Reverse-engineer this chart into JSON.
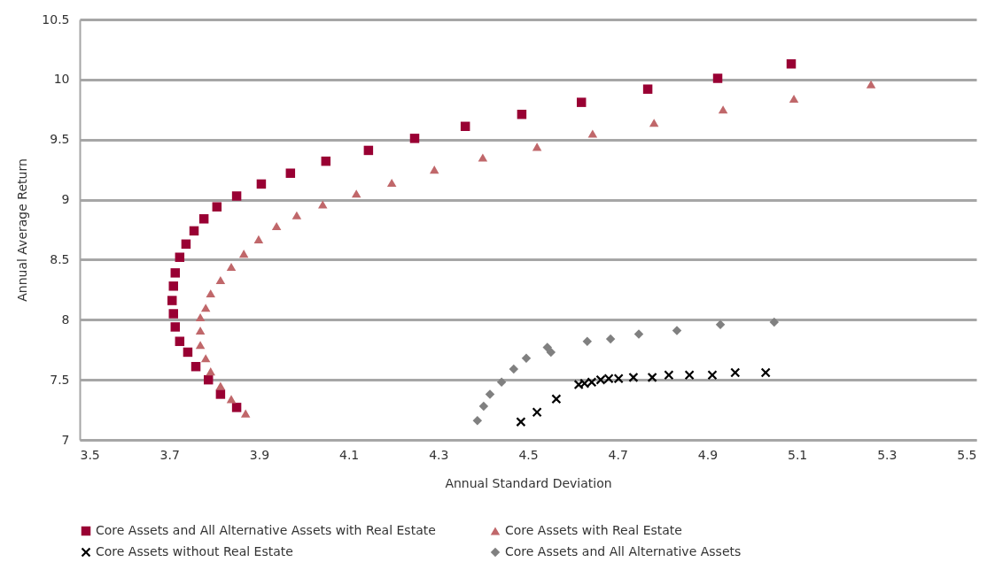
{
  "chart_data": {
    "type": "scatter",
    "xlabel": "Annual Standard Deviation",
    "ylabel": "Annual Average Return",
    "xlim": [
      3.5,
      5.5
    ],
    "ylim": [
      7,
      10.5
    ],
    "xticks": [
      3.5,
      3.7,
      3.9,
      4.1,
      4.3,
      4.5,
      4.7,
      4.9,
      5.1,
      5.3,
      5.5
    ],
    "yticks": [
      7,
      7.5,
      8,
      8.5,
      9,
      9.5,
      10,
      10.5
    ],
    "grid": "y",
    "legend": "bottom",
    "series": [
      {
        "name": "Core Assets and All Alternative Assets with Real Estate",
        "color": "#990033",
        "marker": "square",
        "x": [
          3.85,
          3.814,
          3.787,
          3.759,
          3.741,
          3.723,
          3.713,
          3.709,
          3.706,
          3.709,
          3.713,
          3.723,
          3.737,
          3.755,
          3.777,
          3.806,
          3.85,
          3.905,
          3.97,
          4.049,
          4.144,
          4.247,
          4.36,
          4.486,
          4.619,
          4.767,
          4.923,
          5.087
        ],
        "values": [
          7.27,
          7.38,
          7.5,
          7.61,
          7.73,
          7.82,
          7.94,
          8.05,
          8.16,
          8.28,
          8.39,
          8.52,
          8.63,
          8.74,
          8.84,
          8.94,
          9.03,
          9.13,
          9.22,
          9.32,
          9.41,
          9.51,
          9.61,
          9.71,
          9.81,
          9.92,
          10.01,
          10.13
        ]
      },
      {
        "name": "Core Assets with Real Estate",
        "color": "#c0676a",
        "marker": "triangle",
        "x": [
          3.87,
          3.838,
          3.814,
          3.792,
          3.781,
          3.769,
          3.769,
          3.769,
          3.781,
          3.792,
          3.814,
          3.838,
          3.866,
          3.899,
          3.939,
          3.984,
          4.042,
          4.117,
          4.196,
          4.291,
          4.399,
          4.52,
          4.644,
          4.781,
          4.935,
          5.093,
          5.265
        ],
        "values": [
          7.22,
          7.34,
          7.45,
          7.57,
          7.68,
          7.79,
          7.91,
          8.02,
          8.1,
          8.22,
          8.33,
          8.44,
          8.55,
          8.67,
          8.78,
          8.87,
          8.96,
          9.05,
          9.14,
          9.25,
          9.35,
          9.44,
          9.55,
          9.64,
          9.75,
          9.84,
          9.96
        ]
      },
      {
        "name": "Core Assets without Real Estate",
        "color": "#000000",
        "marker": "cross",
        "x": [
          4.484,
          4.52,
          4.563,
          4.613,
          4.626,
          4.642,
          4.662,
          4.68,
          4.702,
          4.735,
          4.777,
          4.814,
          4.86,
          4.911,
          4.962,
          5.03
        ],
        "values": [
          7.15,
          7.23,
          7.34,
          7.46,
          7.47,
          7.48,
          7.5,
          7.51,
          7.51,
          7.52,
          7.52,
          7.54,
          7.54,
          7.54,
          7.56,
          7.56
        ]
      },
      {
        "name": "Core Assets and All Alternative Assets",
        "color": "#808080",
        "marker": "diamond",
        "x": [
          4.387,
          4.401,
          4.415,
          4.441,
          4.468,
          4.496,
          4.543,
          4.551,
          4.632,
          4.684,
          4.747,
          4.832,
          4.929,
          5.049
        ],
        "values": [
          7.16,
          7.28,
          7.38,
          7.48,
          7.59,
          7.68,
          7.77,
          7.73,
          7.82,
          7.84,
          7.88,
          7.91,
          7.96,
          7.98
        ]
      }
    ]
  }
}
